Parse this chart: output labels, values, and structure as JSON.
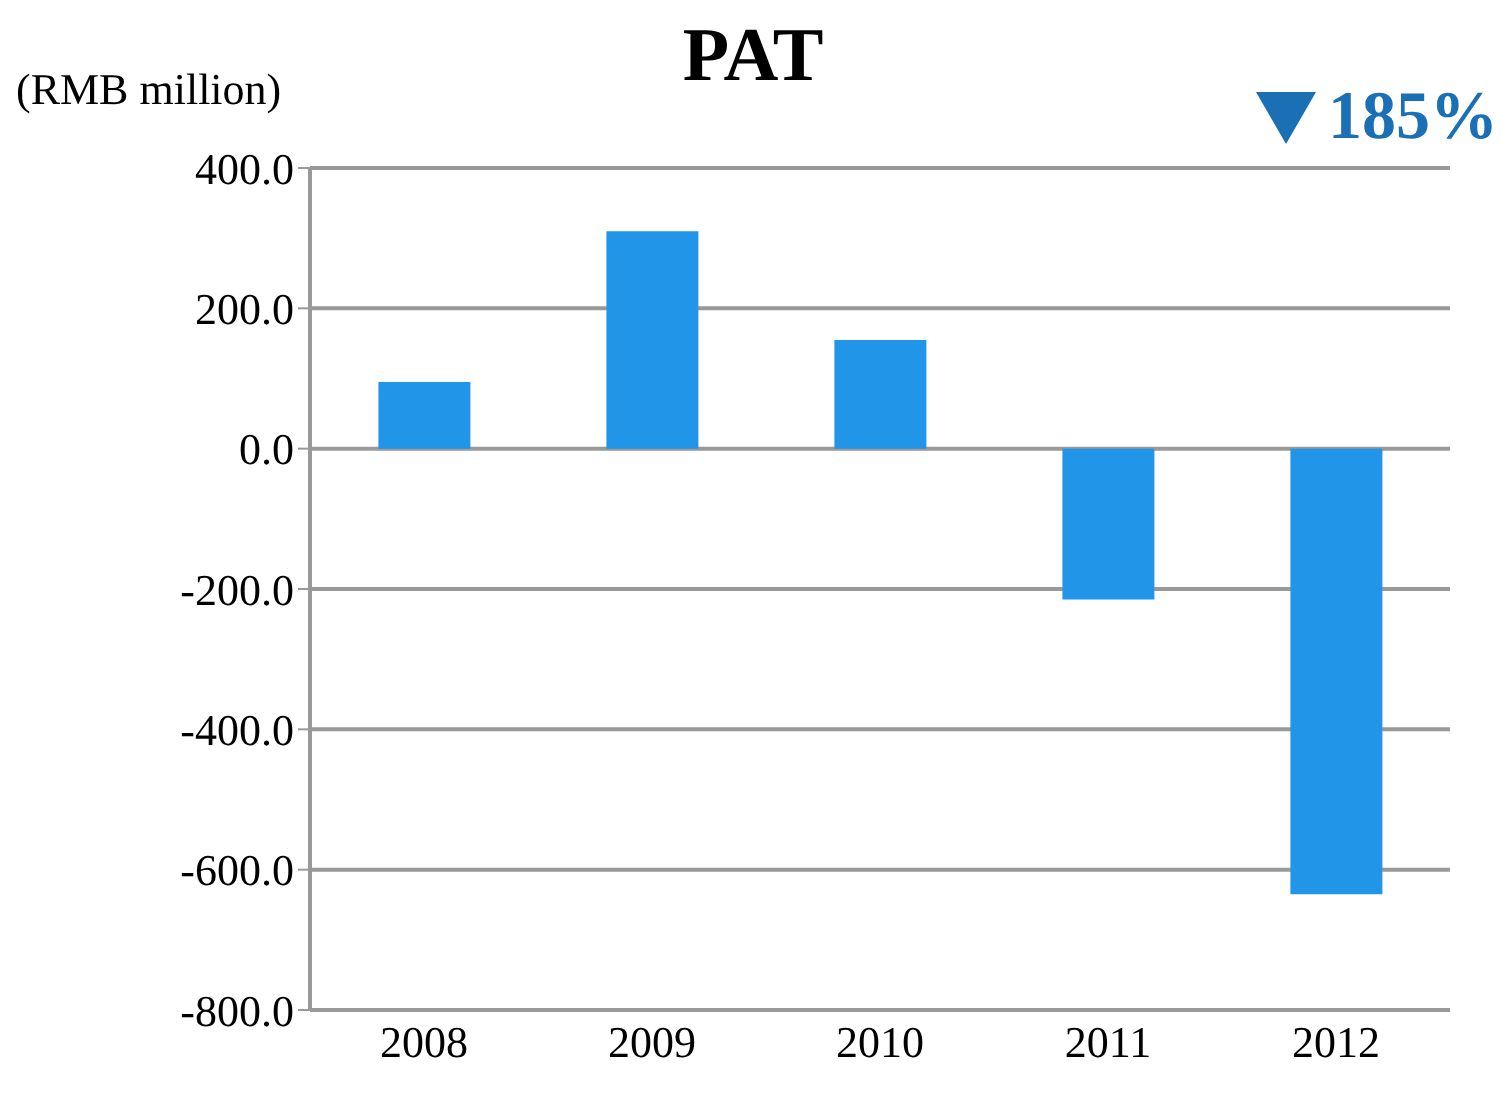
{
  "chart_data": {
    "type": "bar",
    "title": "PAT",
    "ylabel": "(RMB million)",
    "annotations": [
      "185%"
    ],
    "categories": [
      "2008",
      "2009",
      "2010",
      "2011",
      "2012"
    ],
    "values": [
      95,
      310,
      155,
      -215,
      -635
    ],
    "color": "#2196e8",
    "ylim": [
      -800,
      400
    ],
    "yticks": [
      {
        "value": -800,
        "label": "-800.0"
      },
      {
        "value": -600,
        "label": "-600.0"
      },
      {
        "value": -400,
        "label": "-400.0"
      },
      {
        "value": -200,
        "label": "-200.0"
      },
      {
        "value": 0,
        "label": "0.0"
      },
      {
        "value": 200,
        "label": "200.0"
      },
      {
        "value": 400,
        "label": "400.0"
      }
    ],
    "grid": "y",
    "legend": false
  }
}
